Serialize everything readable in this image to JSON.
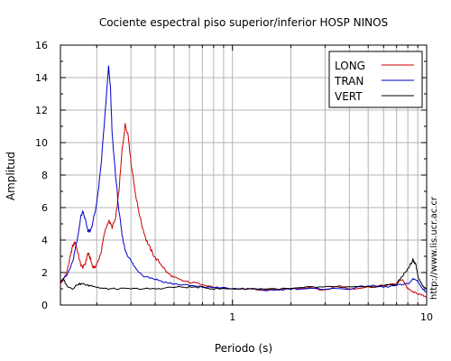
{
  "chart_data": {
    "type": "line",
    "title": "Cociente espectral piso superior/inferior  HOSP NINOS",
    "xlabel": "Periodo (s)",
    "ylabel": "Amplitud",
    "x_scale": "log",
    "xlim": [
      0.13,
      10
    ],
    "ylim": [
      0,
      16
    ],
    "y_ticks": [
      "0",
      "2",
      "4",
      "6",
      "8",
      "10",
      "12",
      "14",
      "16"
    ],
    "x_tick_labels": [
      {
        "value": 1,
        "label": "1"
      },
      {
        "value": 10,
        "label": "10"
      }
    ],
    "grid": true,
    "legend_position": "top-right",
    "series": [
      {
        "name": "LONG",
        "color": "#cc0000",
        "points": [
          [
            0.13,
            1.3
          ],
          [
            0.135,
            1.6
          ],
          [
            0.14,
            2.0
          ],
          [
            0.145,
            2.8
          ],
          [
            0.15,
            3.6
          ],
          [
            0.155,
            3.9
          ],
          [
            0.16,
            3.2
          ],
          [
            0.165,
            2.5
          ],
          [
            0.17,
            2.3
          ],
          [
            0.175,
            2.6
          ],
          [
            0.18,
            3.2
          ],
          [
            0.185,
            2.9
          ],
          [
            0.19,
            2.4
          ],
          [
            0.195,
            2.3
          ],
          [
            0.2,
            2.5
          ],
          [
            0.21,
            3.2
          ],
          [
            0.22,
            4.5
          ],
          [
            0.23,
            5.2
          ],
          [
            0.24,
            4.8
          ],
          [
            0.25,
            5.3
          ],
          [
            0.26,
            7.0
          ],
          [
            0.27,
            9.5
          ],
          [
            0.28,
            11.1
          ],
          [
            0.29,
            10.5
          ],
          [
            0.3,
            8.8
          ],
          [
            0.32,
            6.5
          ],
          [
            0.34,
            5.0
          ],
          [
            0.36,
            4.0
          ],
          [
            0.38,
            3.4
          ],
          [
            0.4,
            2.9
          ],
          [
            0.43,
            2.5
          ],
          [
            0.46,
            2.0
          ],
          [
            0.5,
            1.7
          ],
          [
            0.55,
            1.5
          ],
          [
            0.6,
            1.4
          ],
          [
            0.7,
            1.3
          ],
          [
            0.8,
            1.1
          ],
          [
            0.9,
            1.0
          ],
          [
            1.0,
            1.0
          ],
          [
            1.2,
            1.0
          ],
          [
            1.5,
            0.9
          ],
          [
            2.0,
            1.0
          ],
          [
            2.5,
            1.1
          ],
          [
            3.0,
            0.9
          ],
          [
            3.5,
            1.2
          ],
          [
            4.0,
            1.0
          ],
          [
            5.0,
            1.1
          ],
          [
            6.0,
            1.2
          ],
          [
            7.0,
            1.3
          ],
          [
            7.5,
            1.6
          ],
          [
            8.0,
            1.0
          ],
          [
            8.5,
            0.8
          ],
          [
            9.0,
            0.7
          ],
          [
            9.5,
            0.6
          ],
          [
            10.0,
            0.5
          ]
        ]
      },
      {
        "name": "TRAN",
        "color": "#0000cc",
        "points": [
          [
            0.13,
            1.5
          ],
          [
            0.14,
            1.8
          ],
          [
            0.15,
            2.6
          ],
          [
            0.16,
            4.2
          ],
          [
            0.165,
            5.4
          ],
          [
            0.17,
            5.8
          ],
          [
            0.175,
            5.2
          ],
          [
            0.18,
            4.6
          ],
          [
            0.185,
            4.5
          ],
          [
            0.19,
            5.0
          ],
          [
            0.2,
            6.2
          ],
          [
            0.21,
            8.5
          ],
          [
            0.22,
            11.5
          ],
          [
            0.23,
            14.7
          ],
          [
            0.235,
            13.5
          ],
          [
            0.24,
            10.5
          ],
          [
            0.25,
            8.0
          ],
          [
            0.26,
            5.8
          ],
          [
            0.27,
            4.3
          ],
          [
            0.28,
            3.4
          ],
          [
            0.3,
            2.7
          ],
          [
            0.32,
            2.2
          ],
          [
            0.35,
            1.8
          ],
          [
            0.4,
            1.6
          ],
          [
            0.45,
            1.4
          ],
          [
            0.5,
            1.3
          ],
          [
            0.6,
            1.2
          ],
          [
            0.7,
            1.1
          ],
          [
            0.8,
            1.1
          ],
          [
            1.0,
            1.0
          ],
          [
            1.2,
            1.0
          ],
          [
            1.5,
            0.9
          ],
          [
            2.0,
            1.0
          ],
          [
            2.5,
            1.0
          ],
          [
            3.0,
            1.0
          ],
          [
            4.0,
            1.0
          ],
          [
            5.0,
            1.2
          ],
          [
            6.0,
            1.1
          ],
          [
            7.0,
            1.2
          ],
          [
            8.0,
            1.3
          ],
          [
            8.5,
            1.6
          ],
          [
            9.0,
            1.5
          ],
          [
            9.5,
            1.0
          ],
          [
            10.0,
            0.8
          ]
        ]
      },
      {
        "name": "VERT",
        "color": "#000000",
        "points": [
          [
            0.13,
            1.4
          ],
          [
            0.135,
            1.6
          ],
          [
            0.14,
            1.2
          ],
          [
            0.15,
            1.0
          ],
          [
            0.16,
            1.3
          ],
          [
            0.17,
            1.3
          ],
          [
            0.18,
            1.2
          ],
          [
            0.19,
            1.2
          ],
          [
            0.2,
            1.1
          ],
          [
            0.22,
            1.0
          ],
          [
            0.25,
            1.0
          ],
          [
            0.3,
            1.0
          ],
          [
            0.35,
            1.0
          ],
          [
            0.4,
            1.0
          ],
          [
            0.5,
            1.1
          ],
          [
            0.6,
            1.1
          ],
          [
            0.7,
            1.1
          ],
          [
            0.8,
            1.0
          ],
          [
            1.0,
            1.0
          ],
          [
            1.2,
            1.0
          ],
          [
            1.5,
            1.0
          ],
          [
            2.0,
            1.0
          ],
          [
            2.5,
            1.1
          ],
          [
            3.0,
            1.1
          ],
          [
            4.0,
            1.1
          ],
          [
            5.0,
            1.1
          ],
          [
            6.0,
            1.2
          ],
          [
            7.0,
            1.3
          ],
          [
            7.5,
            1.8
          ],
          [
            8.0,
            2.2
          ],
          [
            8.5,
            2.8
          ],
          [
            8.8,
            2.5
          ],
          [
            9.0,
            1.8
          ],
          [
            9.5,
            1.2
          ],
          [
            10.0,
            1.0
          ]
        ]
      }
    ]
  },
  "side_text": "http://www.lis.ucr.ac.cr"
}
